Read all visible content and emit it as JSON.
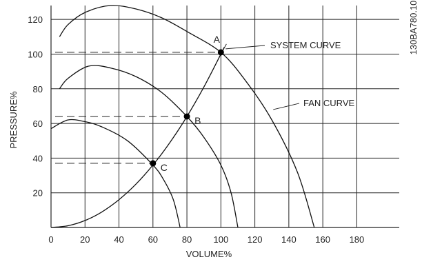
{
  "chart_data": {
    "type": "line",
    "title": "",
    "xlabel": "VOLUME%",
    "ylabel": "PRESSURE%",
    "side_code": "130BA780.10",
    "xlim": [
      0,
      205
    ],
    "ylim": [
      0,
      128
    ],
    "x_ticks": [
      0,
      20,
      40,
      60,
      80,
      100,
      120,
      140,
      160,
      180
    ],
    "y_ticks": [
      20,
      40,
      60,
      80,
      100,
      120
    ],
    "grid": true,
    "series": [
      {
        "name": "FAN CURVE",
        "style": "solid",
        "points": [
          [
            5,
            110
          ],
          [
            10,
            117
          ],
          [
            20,
            124
          ],
          [
            35,
            128
          ],
          [
            50,
            126
          ],
          [
            65,
            121
          ],
          [
            80,
            113
          ],
          [
            100,
            101
          ],
          [
            115,
            84
          ],
          [
            130,
            62
          ],
          [
            145,
            32
          ],
          [
            155,
            0
          ]
        ]
      },
      {
        "name": "",
        "style": "solid",
        "points": [
          [
            5,
            80
          ],
          [
            10,
            86
          ],
          [
            22,
            93
          ],
          [
            35,
            92
          ],
          [
            50,
            87
          ],
          [
            65,
            78
          ],
          [
            80,
            64
          ],
          [
            90,
            52
          ],
          [
            100,
            36
          ],
          [
            106,
            20
          ],
          [
            110,
            0
          ]
        ]
      },
      {
        "name": "",
        "style": "solid",
        "points": [
          [
            0,
            57
          ],
          [
            10,
            62
          ],
          [
            20,
            61
          ],
          [
            30,
            58
          ],
          [
            45,
            50
          ],
          [
            60,
            36
          ],
          [
            66,
            28
          ],
          [
            72,
            16
          ],
          [
            76,
            0
          ]
        ]
      },
      {
        "name": "SYSTEM CURVE",
        "style": "solid",
        "points": [
          [
            0,
            0
          ],
          [
            10,
            1
          ],
          [
            20,
            4
          ],
          [
            30,
            9
          ],
          [
            40,
            16
          ],
          [
            50,
            25
          ],
          [
            60,
            36
          ],
          [
            70,
            49
          ],
          [
            80,
            64
          ],
          [
            90,
            81
          ],
          [
            100,
            100
          ],
          [
            102,
            104
          ]
        ]
      }
    ],
    "operating_points": [
      {
        "label": "A",
        "x": 100,
        "y": 101
      },
      {
        "label": "B",
        "x": 80,
        "y": 64
      },
      {
        "label": "C",
        "x": 60,
        "y": 37
      }
    ],
    "annotations": [
      {
        "text": "SYSTEM CURVE",
        "target_x": 102,
        "target_y": 103
      },
      {
        "text": "FAN CURVE",
        "target_x": 130,
        "target_y": 68
      }
    ]
  }
}
